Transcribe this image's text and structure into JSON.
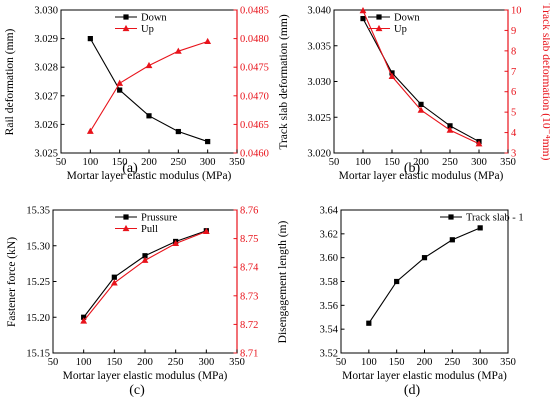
{
  "chart_data": [
    {
      "type": "line",
      "panel_label": "(a)",
      "xlabel": "Mortar layer elastic modulus (MPa)",
      "xlim": [
        50,
        350
      ],
      "xticks": [
        50,
        100,
        150,
        200,
        250,
        300,
        350
      ],
      "ylabel": "Rail deformation (mm)",
      "ylim": [
        3.025,
        3.03
      ],
      "yticks": [
        3.025,
        3.026,
        3.027,
        3.028,
        3.029,
        3.03
      ],
      "ytick_labels": [
        "3.025",
        "3.026",
        "3.027",
        "3.028",
        "3.029",
        "3.030"
      ],
      "y2label": "",
      "y2lim": [
        0.046,
        0.0485
      ],
      "y2ticks": [
        0.046,
        0.0465,
        0.047,
        0.0475,
        0.048,
        0.0485
      ],
      "y2tick_labels": [
        "0.0460",
        "0.0465",
        "0.0470",
        "0.0475",
        "0.0480",
        "0.0485"
      ],
      "legend_position": "top-left",
      "series": [
        {
          "name": "Down",
          "axis": "left",
          "color": "#000000",
          "marker": "square",
          "x": [
            100,
            150,
            200,
            250,
            300
          ],
          "values": [
            3.029,
            3.0272,
            3.0263,
            3.02575,
            3.0254
          ]
        },
        {
          "name": "Up",
          "axis": "right",
          "color": "#e8131b",
          "marker": "triangle",
          "x": [
            100,
            150,
            200,
            250,
            300
          ],
          "values": [
            0.04638,
            0.04722,
            0.04753,
            0.04778,
            0.04795
          ]
        }
      ]
    },
    {
      "type": "line",
      "panel_label": "(b)",
      "xlabel": "Mortar layer elastic modulus (MPa)",
      "xlim": [
        50,
        350
      ],
      "xticks": [
        50,
        100,
        150,
        200,
        250,
        300,
        350
      ],
      "ylabel": "Track slab deformation (mm)",
      "ylim": [
        3.02,
        3.04
      ],
      "yticks": [
        3.02,
        3.025,
        3.03,
        3.035,
        3.04
      ],
      "ytick_labels": [
        "3.020",
        "3.025",
        "3.030",
        "3.035",
        "3.040"
      ],
      "y2label": "Track slab deformation (10⁻⁴mm)",
      "y2lim": [
        3,
        10
      ],
      "y2ticks": [
        3,
        4,
        5,
        6,
        7,
        8,
        9,
        10
      ],
      "y2tick_labels": [
        "3",
        "4",
        "5",
        "6",
        "7",
        "8",
        "9",
        "10"
      ],
      "legend_position": "top-right",
      "series": [
        {
          "name": "Down",
          "axis": "left",
          "color": "#000000",
          "marker": "square",
          "x": [
            100,
            150,
            200,
            250,
            300
          ],
          "values": [
            3.0388,
            3.0312,
            3.0268,
            3.0238,
            3.0216
          ]
        },
        {
          "name": "Up",
          "axis": "right",
          "color": "#e8131b",
          "marker": "triangle",
          "x": [
            100,
            150,
            200,
            250,
            300
          ],
          "values": [
            9.97,
            6.75,
            5.1,
            4.12,
            3.45
          ]
        }
      ]
    },
    {
      "type": "line",
      "panel_label": "(c)",
      "xlabel": "Mortar layer elastic modulus (MPa)",
      "xlim": [
        50,
        350
      ],
      "xticks": [
        50,
        100,
        150,
        200,
        250,
        300,
        350
      ],
      "ylabel": "Fastener force (kN)",
      "ylim": [
        15.15,
        15.35
      ],
      "yticks": [
        15.15,
        15.2,
        15.25,
        15.3,
        15.35
      ],
      "ytick_labels": [
        "15.15",
        "15.20",
        "15.25",
        "15.30",
        "15.35"
      ],
      "y2label": "",
      "y2lim": [
        8.71,
        8.76
      ],
      "y2ticks": [
        8.71,
        8.72,
        8.73,
        8.74,
        8.75,
        8.76
      ],
      "y2tick_labels": [
        "8.71",
        "8.72",
        "8.73",
        "8.74",
        "8.75",
        "8.76"
      ],
      "legend_position": "top-left",
      "series": [
        {
          "name": "Prussure",
          "axis": "left",
          "color": "#000000",
          "marker": "square",
          "x": [
            100,
            150,
            200,
            250,
            300
          ],
          "values": [
            15.2,
            15.256,
            15.286,
            15.306,
            15.321
          ]
        },
        {
          "name": "Pull",
          "axis": "right",
          "color": "#e8131b",
          "marker": "triangle",
          "x": [
            100,
            150,
            200,
            250,
            300
          ],
          "values": [
            8.7212,
            8.7345,
            8.7424,
            8.7483,
            8.7525
          ]
        }
      ]
    },
    {
      "type": "line",
      "panel_label": "(d)",
      "xlabel": "Mortar layer elastic modulus (MPa)",
      "xlim": [
        50,
        350
      ],
      "xticks": [
        50,
        100,
        150,
        200,
        250,
        300,
        350
      ],
      "ylabel": "Disengagement length (m)",
      "ylim": [
        3.52,
        3.64
      ],
      "yticks": [
        3.52,
        3.54,
        3.56,
        3.58,
        3.6,
        3.62,
        3.64
      ],
      "ytick_labels": [
        "3.52",
        "3.54",
        "3.56",
        "3.58",
        "3.60",
        "3.62",
        "3.64"
      ],
      "legend_position": "top-right",
      "series": [
        {
          "name": "Track slab - 1",
          "axis": "left",
          "color": "#000000",
          "marker": "square",
          "x": [
            100,
            150,
            200,
            250,
            300
          ],
          "values": [
            3.545,
            3.58,
            3.6,
            3.615,
            3.625
          ]
        }
      ]
    }
  ]
}
